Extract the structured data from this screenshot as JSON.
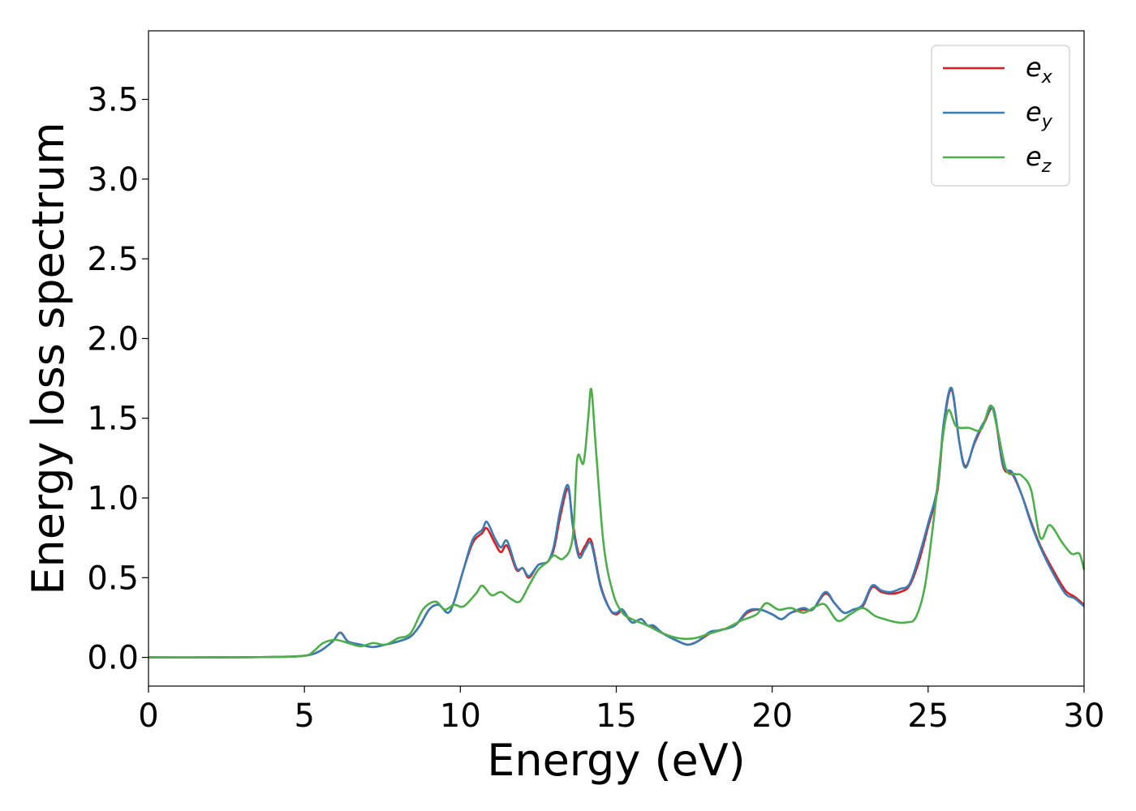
{
  "chart_data": {
    "type": "line",
    "title": "",
    "xlabel": "Energy (eV)",
    "ylabel": "Energy loss spectrum",
    "xlim": [
      0,
      30
    ],
    "ylim": [
      -0.18,
      3.93
    ],
    "xticks": [
      0,
      5,
      10,
      15,
      20,
      25,
      30
    ],
    "xtick_labels": [
      "0",
      "5",
      "10",
      "15",
      "20",
      "25",
      "30"
    ],
    "yticks": [
      0.0,
      0.5,
      1.0,
      1.5,
      2.0,
      2.5,
      3.0,
      3.5
    ],
    "ytick_labels": [
      "0.0",
      "0.5",
      "1.0",
      "1.5",
      "2.0",
      "2.5",
      "3.0",
      "3.5"
    ],
    "grid": false,
    "legend_position": "top-right",
    "series": [
      {
        "name": "e_x",
        "legend_base": "e",
        "legend_sub": "x",
        "color": "#e41a1c",
        "points": [
          [
            0,
            0
          ],
          [
            2,
            0
          ],
          [
            4,
            0.003
          ],
          [
            5,
            0.01
          ],
          [
            5.5,
            0.04
          ],
          [
            5.9,
            0.1
          ],
          [
            6.15,
            0.155
          ],
          [
            6.4,
            0.1
          ],
          [
            6.8,
            0.08
          ],
          [
            7.2,
            0.065
          ],
          [
            7.6,
            0.08
          ],
          [
            8.0,
            0.1
          ],
          [
            8.4,
            0.13
          ],
          [
            8.7,
            0.2
          ],
          [
            9.0,
            0.3
          ],
          [
            9.3,
            0.33
          ],
          [
            9.6,
            0.28
          ],
          [
            9.8,
            0.35
          ],
          [
            10.1,
            0.55
          ],
          [
            10.4,
            0.72
          ],
          [
            10.7,
            0.78
          ],
          [
            10.85,
            0.81
          ],
          [
            11.1,
            0.72
          ],
          [
            11.3,
            0.66
          ],
          [
            11.5,
            0.7
          ],
          [
            11.8,
            0.55
          ],
          [
            12.0,
            0.56
          ],
          [
            12.2,
            0.5
          ],
          [
            12.5,
            0.58
          ],
          [
            12.8,
            0.6
          ],
          [
            13.0,
            0.68
          ],
          [
            13.2,
            0.88
          ],
          [
            13.45,
            1.06
          ],
          [
            13.6,
            0.85
          ],
          [
            13.8,
            0.65
          ],
          [
            14.0,
            0.7
          ],
          [
            14.2,
            0.73
          ],
          [
            14.5,
            0.45
          ],
          [
            14.8,
            0.3
          ],
          [
            15.0,
            0.27
          ],
          [
            15.2,
            0.29
          ],
          [
            15.5,
            0.22
          ],
          [
            15.8,
            0.24
          ],
          [
            16.0,
            0.2
          ],
          [
            16.2,
            0.19
          ],
          [
            16.5,
            0.15
          ],
          [
            17.0,
            0.1
          ],
          [
            17.3,
            0.08
          ],
          [
            17.6,
            0.1
          ],
          [
            18.0,
            0.15
          ],
          [
            18.3,
            0.17
          ],
          [
            18.8,
            0.2
          ],
          [
            19.2,
            0.28
          ],
          [
            19.6,
            0.3
          ],
          [
            20.0,
            0.27
          ],
          [
            20.3,
            0.24
          ],
          [
            20.6,
            0.28
          ],
          [
            21.0,
            0.3
          ],
          [
            21.3,
            0.3
          ],
          [
            21.7,
            0.4
          ],
          [
            22.0,
            0.34
          ],
          [
            22.3,
            0.28
          ],
          [
            22.6,
            0.3
          ],
          [
            22.9,
            0.32
          ],
          [
            23.2,
            0.44
          ],
          [
            23.5,
            0.41
          ],
          [
            23.8,
            0.4
          ],
          [
            24.1,
            0.41
          ],
          [
            24.4,
            0.45
          ],
          [
            24.7,
            0.6
          ],
          [
            25.0,
            0.82
          ],
          [
            25.3,
            1.05
          ],
          [
            25.5,
            1.45
          ],
          [
            25.75,
            1.68
          ],
          [
            26.0,
            1.35
          ],
          [
            26.2,
            1.2
          ],
          [
            26.5,
            1.35
          ],
          [
            26.8,
            1.47
          ],
          [
            27.1,
            1.55
          ],
          [
            27.4,
            1.2
          ],
          [
            27.7,
            1.15
          ],
          [
            28.0,
            1.02
          ],
          [
            28.3,
            0.85
          ],
          [
            28.6,
            0.7
          ],
          [
            29.0,
            0.55
          ],
          [
            29.4,
            0.42
          ],
          [
            29.7,
            0.38
          ],
          [
            30.0,
            0.33
          ]
        ]
      },
      {
        "name": "e_y",
        "legend_base": "e",
        "legend_sub": "y",
        "color": "#377eb8",
        "points": [
          [
            0,
            0
          ],
          [
            2,
            0
          ],
          [
            4,
            0.003
          ],
          [
            5,
            0.01
          ],
          [
            5.5,
            0.04
          ],
          [
            5.9,
            0.1
          ],
          [
            6.15,
            0.155
          ],
          [
            6.4,
            0.1
          ],
          [
            6.8,
            0.08
          ],
          [
            7.2,
            0.065
          ],
          [
            7.6,
            0.08
          ],
          [
            8.0,
            0.1
          ],
          [
            8.4,
            0.13
          ],
          [
            8.7,
            0.2
          ],
          [
            9.0,
            0.3
          ],
          [
            9.3,
            0.33
          ],
          [
            9.6,
            0.28
          ],
          [
            9.8,
            0.35
          ],
          [
            10.1,
            0.55
          ],
          [
            10.4,
            0.74
          ],
          [
            10.7,
            0.8
          ],
          [
            10.85,
            0.85
          ],
          [
            11.1,
            0.75
          ],
          [
            11.3,
            0.69
          ],
          [
            11.5,
            0.73
          ],
          [
            11.8,
            0.56
          ],
          [
            12.0,
            0.56
          ],
          [
            12.2,
            0.51
          ],
          [
            12.5,
            0.58
          ],
          [
            12.8,
            0.6
          ],
          [
            13.0,
            0.7
          ],
          [
            13.2,
            0.92
          ],
          [
            13.45,
            1.08
          ],
          [
            13.6,
            0.83
          ],
          [
            13.8,
            0.63
          ],
          [
            14.0,
            0.68
          ],
          [
            14.2,
            0.71
          ],
          [
            14.5,
            0.44
          ],
          [
            14.8,
            0.3
          ],
          [
            15.0,
            0.28
          ],
          [
            15.2,
            0.3
          ],
          [
            15.5,
            0.22
          ],
          [
            15.8,
            0.24
          ],
          [
            16.0,
            0.2
          ],
          [
            16.2,
            0.2
          ],
          [
            16.5,
            0.15
          ],
          [
            17.0,
            0.1
          ],
          [
            17.3,
            0.08
          ],
          [
            17.6,
            0.1
          ],
          [
            18.0,
            0.16
          ],
          [
            18.3,
            0.17
          ],
          [
            18.8,
            0.2
          ],
          [
            19.2,
            0.29
          ],
          [
            19.6,
            0.3
          ],
          [
            20.0,
            0.27
          ],
          [
            20.3,
            0.24
          ],
          [
            20.6,
            0.28
          ],
          [
            21.0,
            0.31
          ],
          [
            21.3,
            0.3
          ],
          [
            21.7,
            0.41
          ],
          [
            22.0,
            0.34
          ],
          [
            22.3,
            0.28
          ],
          [
            22.6,
            0.3
          ],
          [
            22.9,
            0.33
          ],
          [
            23.2,
            0.45
          ],
          [
            23.5,
            0.42
          ],
          [
            23.8,
            0.41
          ],
          [
            24.1,
            0.43
          ],
          [
            24.4,
            0.46
          ],
          [
            24.7,
            0.63
          ],
          [
            25.0,
            0.84
          ],
          [
            25.3,
            1.07
          ],
          [
            25.5,
            1.47
          ],
          [
            25.75,
            1.69
          ],
          [
            26.0,
            1.35
          ],
          [
            26.2,
            1.19
          ],
          [
            26.5,
            1.36
          ],
          [
            26.8,
            1.48
          ],
          [
            27.1,
            1.56
          ],
          [
            27.4,
            1.21
          ],
          [
            27.7,
            1.16
          ],
          [
            28.0,
            1.02
          ],
          [
            28.3,
            0.84
          ],
          [
            28.6,
            0.69
          ],
          [
            29.0,
            0.53
          ],
          [
            29.4,
            0.4
          ],
          [
            29.7,
            0.37
          ],
          [
            30.0,
            0.32
          ]
        ]
      },
      {
        "name": "e_z",
        "legend_base": "e",
        "legend_sub": "z",
        "color": "#4daf4a",
        "points": [
          [
            0,
            0
          ],
          [
            2,
            0
          ],
          [
            4,
            0.003
          ],
          [
            5,
            0.01
          ],
          [
            5.3,
            0.04
          ],
          [
            5.6,
            0.09
          ],
          [
            6.0,
            0.11
          ],
          [
            6.4,
            0.09
          ],
          [
            6.8,
            0.07
          ],
          [
            7.2,
            0.09
          ],
          [
            7.6,
            0.08
          ],
          [
            8.0,
            0.12
          ],
          [
            8.4,
            0.15
          ],
          [
            8.8,
            0.3
          ],
          [
            9.2,
            0.35
          ],
          [
            9.5,
            0.3
          ],
          [
            9.8,
            0.33
          ],
          [
            10.1,
            0.32
          ],
          [
            10.5,
            0.4
          ],
          [
            10.7,
            0.45
          ],
          [
            11.0,
            0.39
          ],
          [
            11.3,
            0.41
          ],
          [
            11.6,
            0.37
          ],
          [
            11.9,
            0.35
          ],
          [
            12.2,
            0.45
          ],
          [
            12.5,
            0.55
          ],
          [
            12.8,
            0.6
          ],
          [
            13.0,
            0.64
          ],
          [
            13.3,
            0.62
          ],
          [
            13.6,
            0.75
          ],
          [
            13.75,
            1.25
          ],
          [
            13.95,
            1.22
          ],
          [
            14.1,
            1.5
          ],
          [
            14.2,
            1.68
          ],
          [
            14.35,
            1.3
          ],
          [
            14.6,
            0.7
          ],
          [
            14.9,
            0.4
          ],
          [
            15.2,
            0.28
          ],
          [
            15.5,
            0.24
          ],
          [
            16.0,
            0.2
          ],
          [
            16.5,
            0.15
          ],
          [
            17.0,
            0.12
          ],
          [
            17.5,
            0.12
          ],
          [
            18.0,
            0.15
          ],
          [
            18.5,
            0.18
          ],
          [
            19.0,
            0.23
          ],
          [
            19.5,
            0.27
          ],
          [
            19.8,
            0.34
          ],
          [
            20.2,
            0.3
          ],
          [
            20.6,
            0.31
          ],
          [
            21.0,
            0.28
          ],
          [
            21.4,
            0.32
          ],
          [
            21.7,
            0.33
          ],
          [
            22.1,
            0.23
          ],
          [
            22.5,
            0.27
          ],
          [
            22.9,
            0.31
          ],
          [
            23.3,
            0.26
          ],
          [
            23.6,
            0.24
          ],
          [
            24.0,
            0.22
          ],
          [
            24.3,
            0.22
          ],
          [
            24.6,
            0.25
          ],
          [
            24.9,
            0.45
          ],
          [
            25.2,
            0.9
          ],
          [
            25.45,
            1.35
          ],
          [
            25.65,
            1.55
          ],
          [
            25.9,
            1.45
          ],
          [
            26.3,
            1.44
          ],
          [
            26.7,
            1.43
          ],
          [
            27.0,
            1.58
          ],
          [
            27.2,
            1.45
          ],
          [
            27.5,
            1.18
          ],
          [
            27.8,
            1.15
          ],
          [
            28.0,
            1.14
          ],
          [
            28.3,
            1.05
          ],
          [
            28.6,
            0.75
          ],
          [
            28.9,
            0.83
          ],
          [
            29.3,
            0.72
          ],
          [
            29.6,
            0.65
          ],
          [
            29.85,
            0.65
          ],
          [
            30.0,
            0.55
          ]
        ]
      }
    ]
  }
}
